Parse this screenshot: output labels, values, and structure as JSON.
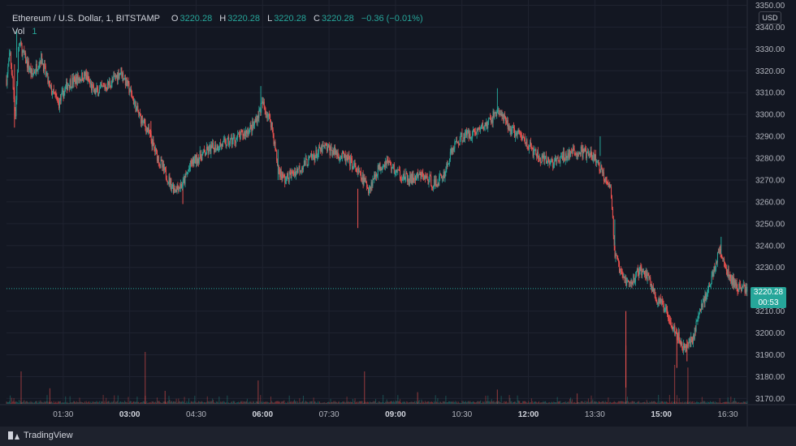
{
  "legend": {
    "symbol": "Ethereum / U.S. Dollar, 1, BITSTAMP",
    "open_label": "O",
    "open": "3220.28",
    "high_label": "H",
    "high": "3220.28",
    "low_label": "L",
    "low": "3220.28",
    "close_label": "C",
    "close": "3220.28",
    "change": "−0.36 (−0.01%)",
    "vol_label": "Vol",
    "vol_value": "1"
  },
  "currency": "USD",
  "price_tag": {
    "price": "3220.28",
    "countdown": "00:53"
  },
  "footer": {
    "brand": "TradingView"
  },
  "colors": {
    "up": "#26a69a",
    "down": "#ef5350",
    "background": "#131722",
    "grid": "#1f2330",
    "text": "#b2b5be"
  },
  "chart_data": {
    "type": "candlestick",
    "x_tick_labels": [
      "01:30",
      "03:00",
      "04:30",
      "06:00",
      "07:30",
      "09:00",
      "10:30",
      "12:00",
      "13:30",
      "15:00",
      "16:30"
    ],
    "x_tick_bold": [
      false,
      true,
      false,
      true,
      false,
      true,
      false,
      true,
      false,
      true,
      false
    ],
    "x_tick_hours": [
      1.5,
      3,
      4.5,
      6,
      7.5,
      9,
      10.5,
      12,
      13.5,
      15,
      16.5
    ],
    "x_range_hours": [
      0.22,
      16.94
    ],
    "y_tick_labels": [
      "3350.00",
      "3340.00",
      "3330.00",
      "3320.00",
      "3310.00",
      "3300.00",
      "3290.00",
      "3280.00",
      "3270.00",
      "3260.00",
      "3250.00",
      "3240.00",
      "3230.00",
      "3210.00",
      "3200.00",
      "3190.00",
      "3180.00",
      "3170.00"
    ],
    "ylim": [
      3166.8,
      3352.4
    ],
    "last_price": 3220.28,
    "close_path": [
      [
        0.22,
        3316
      ],
      [
        0.3,
        3328
      ],
      [
        0.42,
        3300
      ],
      [
        0.5,
        3333
      ],
      [
        0.65,
        3325
      ],
      [
        0.8,
        3318
      ],
      [
        1.0,
        3326
      ],
      [
        1.2,
        3312
      ],
      [
        1.4,
        3305
      ],
      [
        1.6,
        3314
      ],
      [
        1.8,
        3316
      ],
      [
        2.0,
        3318
      ],
      [
        2.2,
        3310
      ],
      [
        2.4,
        3312
      ],
      [
        2.6,
        3315
      ],
      [
        2.8,
        3320
      ],
      [
        3.0,
        3311
      ],
      [
        3.2,
        3300
      ],
      [
        3.4,
        3293
      ],
      [
        3.6,
        3282
      ],
      [
        3.8,
        3273
      ],
      [
        4.0,
        3266
      ],
      [
        4.2,
        3268
      ],
      [
        4.4,
        3278
      ],
      [
        4.6,
        3281
      ],
      [
        4.9,
        3285
      ],
      [
        5.2,
        3287
      ],
      [
        5.5,
        3290
      ],
      [
        5.8,
        3295
      ],
      [
        6.0,
        3305
      ],
      [
        6.2,
        3296
      ],
      [
        6.35,
        3275
      ],
      [
        6.5,
        3270
      ],
      [
        6.8,
        3275
      ],
      [
        7.1,
        3280
      ],
      [
        7.4,
        3285
      ],
      [
        7.7,
        3282
      ],
      [
        8.0,
        3278
      ],
      [
        8.2,
        3272
      ],
      [
        8.4,
        3266
      ],
      [
        8.6,
        3275
      ],
      [
        8.8,
        3279
      ],
      [
        9.0,
        3274
      ],
      [
        9.3,
        3270
      ],
      [
        9.6,
        3272
      ],
      [
        9.9,
        3268
      ],
      [
        10.1,
        3273
      ],
      [
        10.3,
        3285
      ],
      [
        10.5,
        3290
      ],
      [
        10.8,
        3292
      ],
      [
        11.1,
        3296
      ],
      [
        11.3,
        3302
      ],
      [
        11.6,
        3293
      ],
      [
        11.9,
        3289
      ],
      [
        12.1,
        3283
      ],
      [
        12.3,
        3279
      ],
      [
        12.6,
        3278
      ],
      [
        12.9,
        3282
      ],
      [
        13.2,
        3283
      ],
      [
        13.5,
        3280
      ],
      [
        13.7,
        3272
      ],
      [
        13.85,
        3268
      ],
      [
        13.95,
        3236
      ],
      [
        14.1,
        3226
      ],
      [
        14.3,
        3222
      ],
      [
        14.5,
        3229
      ],
      [
        14.7,
        3226
      ],
      [
        14.9,
        3215
      ],
      [
        15.1,
        3211
      ],
      [
        15.3,
        3202
      ],
      [
        15.5,
        3193
      ],
      [
        15.7,
        3197
      ],
      [
        15.9,
        3212
      ],
      [
        16.1,
        3222
      ],
      [
        16.3,
        3238
      ],
      [
        16.5,
        3227
      ],
      [
        16.7,
        3221
      ],
      [
        16.9,
        3220.28
      ]
    ],
    "spikes": [
      [
        0.4,
        3294,
        3323
      ],
      [
        0.45,
        3339,
        3326
      ],
      [
        3.48,
        3290,
        3297
      ],
      [
        4.2,
        3259,
        3266
      ],
      [
        5.96,
        3313,
        3301
      ],
      [
        6.35,
        3284,
        3270
      ],
      [
        8.15,
        3248,
        3266
      ],
      [
        11.3,
        3312,
        3302
      ],
      [
        13.62,
        3290,
        3281
      ],
      [
        13.95,
        3252,
        3240
      ],
      [
        14.2,
        3175,
        3210
      ],
      [
        15.35,
        3184,
        3200
      ],
      [
        15.58,
        3187,
        3197
      ],
      [
        16.35,
        3244,
        3236
      ]
    ],
    "volume_spikes": [
      [
        3.35,
        40
      ],
      [
        14.2,
        45
      ],
      [
        0.55,
        25
      ],
      [
        8.3,
        25
      ],
      [
        5.9,
        18
      ],
      [
        1.2,
        12
      ],
      [
        15.3,
        30
      ],
      [
        15.6,
        28
      ],
      [
        3.8,
        10
      ],
      [
        9.5,
        9
      ],
      [
        11.3,
        11
      ],
      [
        13.1,
        8
      ]
    ]
  }
}
